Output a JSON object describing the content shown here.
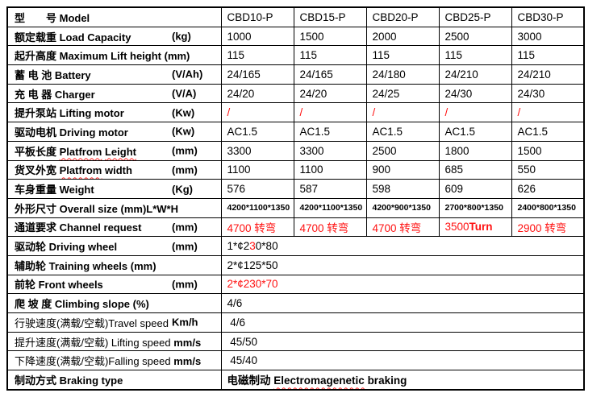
{
  "table": {
    "models": [
      "CBD10-P",
      "CBD15-P",
      "CBD20-P",
      "CBD25-P",
      "CBD30-P"
    ],
    "colors": {
      "red": "#ff1111",
      "border": "#000000",
      "background": "#ffffff",
      "squiggle": "#ff2a2a"
    },
    "rows": [
      {
        "id": "model",
        "label": [
          {
            "t": "型　　号 Model",
            "b": true
          }
        ],
        "cells": [
          [
            {
              "t": "CBD10-P"
            }
          ],
          [
            {
              "t": "CBD15-P"
            }
          ],
          [
            {
              "t": "CBD20-P"
            }
          ],
          [
            {
              "t": "CBD25-P"
            }
          ],
          [
            {
              "t": "CBD30-P"
            }
          ]
        ]
      },
      {
        "id": "load-capacity",
        "label": [
          {
            "t": "额定载重 Load Capacity",
            "b": true
          }
        ],
        "unit": "(kg)",
        "cells": [
          [
            {
              "t": "1000"
            }
          ],
          [
            {
              "t": "1500"
            }
          ],
          [
            {
              "t": "2000"
            }
          ],
          [
            {
              "t": "2500"
            }
          ],
          [
            {
              "t": "3000"
            }
          ]
        ]
      },
      {
        "id": "max-lift-height",
        "label": [
          {
            "t": "起升高度 Maximum Lift height (mm)",
            "b": true
          }
        ],
        "cells": [
          [
            {
              "t": "115"
            }
          ],
          [
            {
              "t": "115"
            }
          ],
          [
            {
              "t": "115"
            }
          ],
          [
            {
              "t": "115"
            }
          ],
          [
            {
              "t": "115"
            }
          ]
        ]
      },
      {
        "id": "battery",
        "label": [
          {
            "t": "蓄 电 池 Battery",
            "b": true
          }
        ],
        "unit": "(V/Ah)",
        "cells": [
          [
            {
              "t": "24/165"
            }
          ],
          [
            {
              "t": "24/165"
            }
          ],
          [
            {
              "t": "24/180"
            }
          ],
          [
            {
              "t": "24/210"
            }
          ],
          [
            {
              "t": "24/210"
            }
          ]
        ]
      },
      {
        "id": "charger",
        "label": [
          {
            "t": "充 电 器 Charger",
            "b": true
          }
        ],
        "unit": "(V/A)",
        "cells": [
          [
            {
              "t": "24/20"
            }
          ],
          [
            {
              "t": "24/20"
            }
          ],
          [
            {
              "t": "24/25"
            }
          ],
          [
            {
              "t": "24/30"
            }
          ],
          [
            {
              "t": "24/30"
            }
          ]
        ]
      },
      {
        "id": "lifting-motor",
        "label": [
          {
            "t": "提升泵站 Lifting motor",
            "b": true
          }
        ],
        "unit": "(Kw)",
        "cells": [
          [
            {
              "t": "/",
              "r": true
            }
          ],
          [
            {
              "t": "/",
              "r": true
            }
          ],
          [
            {
              "t": "/",
              "r": true
            }
          ],
          [
            {
              "t": "/",
              "r": true
            }
          ],
          [
            {
              "t": "/",
              "r": true
            }
          ]
        ]
      },
      {
        "id": "driving-motor",
        "label": [
          {
            "t": "驱动电机 Driving motor",
            "b": true
          }
        ],
        "unit": "(Kw)",
        "cells": [
          [
            {
              "t": "AC1.5"
            }
          ],
          [
            {
              "t": "AC1.5"
            }
          ],
          [
            {
              "t": "AC1.5"
            }
          ],
          [
            {
              "t": "AC1.5"
            }
          ],
          [
            {
              "t": "AC1.5"
            }
          ]
        ]
      },
      {
        "id": "platform-length",
        "label": [
          {
            "t": "平板长度 ",
            "b": true
          },
          {
            "t": "Platfrom",
            "b": true,
            "w": true
          },
          {
            "t": " ",
            "b": true
          },
          {
            "t": "Leight",
            "b": true,
            "w": true
          }
        ],
        "unit": "(mm)",
        "cells": [
          [
            {
              "t": "3300"
            }
          ],
          [
            {
              "t": "3300"
            }
          ],
          [
            {
              "t": "2500"
            }
          ],
          [
            {
              "t": "1800"
            }
          ],
          [
            {
              "t": "1500"
            }
          ]
        ]
      },
      {
        "id": "platform-width",
        "label": [
          {
            "t": "货叉外宽 ",
            "b": true
          },
          {
            "t": "Platfrom",
            "b": true,
            "w": true
          },
          {
            "t": " width",
            "b": true
          }
        ],
        "unit": "(mm)",
        "cells": [
          [
            {
              "t": "1100"
            }
          ],
          [
            {
              "t": "1100"
            }
          ],
          [
            {
              "t": "900"
            }
          ],
          [
            {
              "t": "685"
            }
          ],
          [
            {
              "t": "550"
            }
          ]
        ]
      },
      {
        "id": "weight",
        "label": [
          {
            "t": "车身重量 Weight",
            "b": true
          }
        ],
        "unit": "(Kg)",
        "cells": [
          [
            {
              "t": "576"
            }
          ],
          [
            {
              "t": "587"
            }
          ],
          [
            {
              "t": "598"
            }
          ],
          [
            {
              "t": "609"
            }
          ],
          [
            {
              "t": "626"
            }
          ]
        ]
      },
      {
        "id": "overall-size",
        "small": true,
        "label": [
          {
            "t": "外形尺寸 Overall size (mm)L*W*H",
            "b": true
          }
        ],
        "cells": [
          [
            {
              "t": "4200*1100*1350"
            }
          ],
          [
            {
              "t": "4200*1100*1350"
            }
          ],
          [
            {
              "t": "4200*900*1350"
            }
          ],
          [
            {
              "t": "2700*800*1350"
            }
          ],
          [
            {
              "t": "2400*800*1350"
            }
          ]
        ]
      },
      {
        "id": "channel-request",
        "label": [
          {
            "t": "通道要求 Channel request",
            "b": true
          }
        ],
        "unit": "(mm)",
        "cells": [
          [
            {
              "t": "4700 转弯",
              "r": true
            }
          ],
          [
            {
              "t": "4700 转弯",
              "r": true
            }
          ],
          [
            {
              "t": "4700 转弯",
              "r": true
            }
          ],
          [
            {
              "t": "3500",
              "r": true
            },
            {
              "t": "Turn",
              "r": true,
              "b": true
            }
          ],
          [
            {
              "t": "2900 转弯",
              "r": true
            }
          ]
        ]
      },
      {
        "id": "driving-wheel",
        "label": [
          {
            "t": "驱动轮 Driving wheel",
            "b": true
          }
        ],
        "unit": "(mm)",
        "merged": [
          {
            "t": "1*¢2"
          },
          {
            "t": "3",
            "r": true
          },
          {
            "t": "0*80"
          }
        ]
      },
      {
        "id": "training-wheels",
        "label": [
          {
            "t": "辅助轮 Training wheels (mm)",
            "b": true
          }
        ],
        "merged": [
          {
            "t": "2*¢125*50"
          }
        ]
      },
      {
        "id": "front-wheels",
        "label": [
          {
            "t": "前轮 Front wheels",
            "b": true
          }
        ],
        "unit": "(mm)",
        "merged": [
          {
            "t": "2*¢230*70",
            "r": true
          }
        ]
      },
      {
        "id": "climbing-slope",
        "label": [
          {
            "t": "爬 坡 度 Climbing slope (%)",
            "b": true
          }
        ],
        "merged": [
          {
            "t": "4/6"
          }
        ]
      },
      {
        "id": "travel-speed",
        "label": [
          {
            "t": "行驶速度(满载/空载)Travel speed"
          }
        ],
        "unit": "Km/h",
        "merged": [
          {
            "t": " 4/6"
          }
        ]
      },
      {
        "id": "lifting-speed",
        "label": [
          {
            "t": "提升速度(满载/空载) Lifting speed "
          },
          {
            "t": "mm/s",
            "b": true
          }
        ],
        "merged": [
          {
            "t": " 45/50"
          }
        ]
      },
      {
        "id": "falling-speed",
        "label": [
          {
            "t": "下降速度(满载/空载)Falling speed "
          },
          {
            "t": "mm/s",
            "b": true
          }
        ],
        "merged": [
          {
            "t": " 45/40"
          }
        ]
      },
      {
        "id": "braking-type",
        "label": [
          {
            "t": "制动方式 Braking type",
            "b": true
          }
        ],
        "merged": [
          {
            "t": "电磁制动 ",
            "b": true
          },
          {
            "t": "Electromagenetic",
            "b": true,
            "w": true
          },
          {
            "t": " braking",
            "b": true
          }
        ]
      }
    ]
  }
}
